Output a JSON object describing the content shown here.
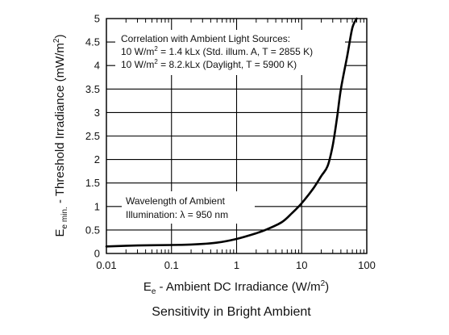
{
  "chart_data": {
    "type": "line",
    "title": "Sensitivity in Bright Ambient",
    "xlabel": {
      "main": "E",
      "sub": "e",
      "rest": " - Ambient DC Irradiance (W/m",
      "sup": "2",
      "end": ")"
    },
    "ylabel": {
      "main": "E",
      "sub": "e min.",
      "rest": " - Threshold Irradiance (mW/m",
      "sup": "2",
      "end": ")"
    },
    "x_scale": "log",
    "xlim": [
      0.01,
      100
    ],
    "ylim": [
      0,
      5
    ],
    "grid": true,
    "x_ticks": [
      {
        "value": 0.01,
        "label": "0.01"
      },
      {
        "value": 0.1,
        "label": "0.1"
      },
      {
        "value": 1,
        "label": "1"
      },
      {
        "value": 10,
        "label": "10"
      },
      {
        "value": 100,
        "label": "100"
      }
    ],
    "y_ticks": [
      {
        "value": 0,
        "label": "0"
      },
      {
        "value": 0.5,
        "label": "0.5"
      },
      {
        "value": 1,
        "label": "1"
      },
      {
        "value": 1.5,
        "label": "1.5"
      },
      {
        "value": 2,
        "label": "2"
      },
      {
        "value": 2.5,
        "label": "2.5"
      },
      {
        "value": 3,
        "label": "3"
      },
      {
        "value": 3.5,
        "label": "3.5"
      },
      {
        "value": 4,
        "label": "4"
      },
      {
        "value": 4.5,
        "label": "4.5"
      },
      {
        "value": 5,
        "label": "5"
      }
    ],
    "series": [
      {
        "x": [
          0.01,
          0.03,
          0.1,
          0.2,
          0.5,
          1,
          2,
          3,
          5,
          7,
          10,
          15,
          20,
          25,
          30,
          35,
          40,
          50,
          60,
          70
        ],
        "values": [
          0.15,
          0.17,
          0.18,
          0.19,
          0.23,
          0.31,
          0.43,
          0.52,
          0.67,
          0.85,
          1.07,
          1.38,
          1.65,
          1.86,
          2.3,
          2.9,
          3.5,
          4.2,
          4.8,
          5.0
        ]
      }
    ],
    "annotations": [
      {
        "id": "correlation",
        "lines": [
          {
            "text": "Correlation with Ambient Light Sources:"
          },
          {
            "pre": "10 W/m",
            "sup": "2",
            "post": " = 1.4 kLx (Std. illum. A, T = 2855 K)"
          },
          {
            "pre": "10 W/m",
            "sup": "2",
            "post": " = 8.2.kLx (Daylight, T = 5900 K)"
          }
        ]
      },
      {
        "id": "wavelength",
        "lines": [
          {
            "text": "Wavelength of Ambient"
          },
          {
            "text": "Illumination: λ = 950 nm"
          }
        ]
      }
    ]
  }
}
